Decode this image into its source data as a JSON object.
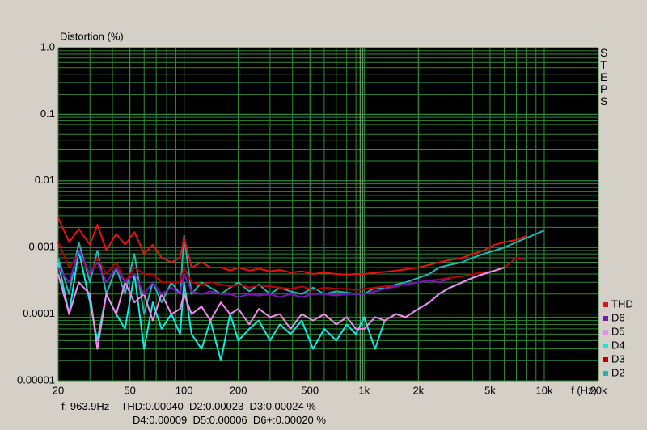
{
  "chart_data": {
    "type": "line",
    "y_label": "Distortion (%)",
    "x_label": "f (Hz)",
    "side_label": "STEPS",
    "readout": {
      "line1": "f: 963.9Hz    THD:0.00040  D2:0.00023  D3:0.00024 %",
      "line2": "D4:0.00009  D5:0.00006  D6+:0.00020 %"
    },
    "cursor_x": 963.9,
    "log_x": true,
    "log_y": true,
    "grid": true,
    "grid_color": "#2f8a36",
    "legend": "right",
    "xlim": [
      20,
      20000
    ],
    "ylim": [
      1e-05,
      1
    ],
    "xticks": [
      20,
      50,
      100,
      200,
      500,
      {
        "value": 1000,
        "label": "1k"
      },
      {
        "value": 2000,
        "label": "2k"
      },
      {
        "value": 5000,
        "label": "5k"
      },
      {
        "value": 10000,
        "label": "10k"
      },
      {
        "value": 20000,
        "label": "20k"
      }
    ],
    "yticks": [
      {
        "value": 1,
        "label": "1.0"
      },
      0.1,
      0.01,
      0.001,
      0.0001,
      {
        "value": 1e-05,
        "label": "0.00001"
      }
    ],
    "x": [
      20,
      23,
      26,
      30,
      33,
      37,
      42,
      47,
      53,
      60,
      67,
      75,
      85,
      95,
      100,
      110,
      125,
      140,
      160,
      180,
      200,
      230,
      260,
      300,
      340,
      390,
      450,
      520,
      600,
      700,
      800,
      900,
      1000,
      1150,
      1300,
      1500,
      1700,
      2000,
      2300,
      2600,
      3000,
      3500,
      4000,
      4600,
      5300,
      6000,
      7000,
      8000,
      9000,
      10000
    ],
    "series": [
      {
        "name": "THD",
        "color": "#e81010",
        "values": [
          0.0028,
          0.0012,
          0.0019,
          0.0011,
          0.0022,
          0.0009,
          0.0016,
          0.0011,
          0.0017,
          0.0008,
          0.0011,
          0.0007,
          0.0006,
          0.0007,
          0.0014,
          0.0005,
          0.0006,
          0.0005,
          0.0005,
          0.00045,
          0.0005,
          0.00045,
          0.00048,
          0.00044,
          0.00046,
          0.00042,
          0.00044,
          0.0004,
          0.00042,
          0.0004,
          0.00039,
          0.0004,
          0.0004,
          0.00042,
          0.00043,
          0.00045,
          0.00047,
          0.0005,
          0.00055,
          0.0006,
          0.00065,
          0.0007,
          0.0008,
          0.0009,
          0.0011,
          0.0012,
          0.0013,
          0.0015,
          null,
          null
        ]
      },
      {
        "name": "D6+",
        "color": "#8010c0",
        "values": [
          0.0005,
          0.0003,
          0.0009,
          0.0004,
          0.0006,
          0.0003,
          0.0005,
          0.0003,
          0.0004,
          0.0002,
          0.0003,
          0.0002,
          0.00025,
          0.0002,
          0.0004,
          0.00022,
          0.0002,
          0.00022,
          0.0002,
          0.0002,
          0.00018,
          0.0002,
          0.00019,
          0.0002,
          0.00018,
          0.0002,
          0.00018,
          0.0002,
          0.0002,
          0.00019,
          0.0002,
          0.0002,
          0.0002,
          0.00022,
          0.00024,
          0.00026,
          0.00028,
          0.0003,
          0.00032,
          0.0003,
          0.00034,
          null,
          null,
          null,
          null,
          null,
          null,
          null,
          null,
          null
        ]
      },
      {
        "name": "D5",
        "color": "#f088f0",
        "values": [
          0.0004,
          0.0001,
          0.0003,
          0.0002,
          3e-05,
          0.0002,
          0.0001,
          0.0003,
          0.00015,
          0.0002,
          8e-05,
          0.0002,
          0.0001,
          0.00012,
          0.0002,
          0.0001,
          0.00013,
          8e-05,
          0.00015,
          0.0001,
          0.00012,
          7e-05,
          0.00012,
          9e-05,
          0.0001,
          6e-05,
          0.0001,
          8e-05,
          0.0001,
          7e-05,
          9e-05,
          6e-05,
          6e-05,
          9e-05,
          8e-05,
          0.0001,
          9e-05,
          0.00012,
          0.00015,
          0.0002,
          0.00025,
          0.0003,
          0.00035,
          0.0004,
          0.00045,
          0.0005,
          null,
          null,
          null,
          null
        ]
      },
      {
        "name": "D4",
        "color": "#10e8e8",
        "values": [
          0.0006,
          0.0001,
          0.0009,
          0.00015,
          4e-05,
          0.0002,
          0.0001,
          6e-05,
          0.0004,
          3e-05,
          0.00015,
          6e-05,
          0.0001,
          5e-05,
          0.0003,
          5e-05,
          3e-05,
          8e-05,
          2e-05,
          0.0001,
          4e-05,
          6e-05,
          8e-05,
          4e-05,
          7e-05,
          5e-05,
          8e-05,
          3e-05,
          6e-05,
          4e-05,
          7e-05,
          5e-05,
          9e-05,
          3e-05,
          8e-05,
          0.0001,
          9e-05,
          0.00012,
          0.00015,
          0.0002,
          0.00025,
          0.0003,
          0.00035,
          0.0004,
          0.00045,
          0.0005,
          null,
          null,
          null,
          null
        ]
      },
      {
        "name": "D3",
        "color": "#b80000",
        "values": [
          0.0012,
          0.0005,
          0.0008,
          0.0004,
          0.0007,
          0.0004,
          0.0006,
          0.0003,
          0.0005,
          0.0004,
          0.0004,
          0.0003,
          0.0003,
          0.0003,
          0.0005,
          0.0003,
          0.00028,
          0.0003,
          0.00028,
          0.00026,
          0.00028,
          0.00025,
          0.00027,
          0.00026,
          0.00025,
          0.00024,
          0.00026,
          0.00023,
          0.00025,
          0.00024,
          0.00024,
          0.00023,
          0.00024,
          0.00025,
          0.00026,
          0.00027,
          0.00028,
          0.0003,
          0.00032,
          0.00033,
          0.00035,
          0.00037,
          0.0004,
          0.00042,
          0.00045,
          0.0005,
          0.0007,
          0.00065,
          null,
          null
        ]
      },
      {
        "name": "D2",
        "color": "#20b4b4",
        "values": [
          0.0007,
          0.0002,
          0.0012,
          0.0003,
          0.0009,
          0.0002,
          0.0005,
          0.0002,
          0.0008,
          0.0001,
          0.0003,
          0.00015,
          0.0003,
          0.0002,
          0.0015,
          0.0002,
          0.0003,
          0.00025,
          0.0002,
          0.00025,
          0.0003,
          0.00022,
          0.00028,
          0.0002,
          0.00025,
          0.00022,
          0.0002,
          0.00025,
          0.0002,
          0.00022,
          0.00021,
          0.0002,
          0.0002,
          0.00025,
          0.00024,
          0.00028,
          0.0003,
          0.00035,
          0.0004,
          0.0005,
          0.00055,
          0.0006,
          0.0007,
          0.0008,
          0.0009,
          0.001,
          0.0012,
          0.0014,
          0.0016,
          0.0018
        ]
      }
    ]
  }
}
